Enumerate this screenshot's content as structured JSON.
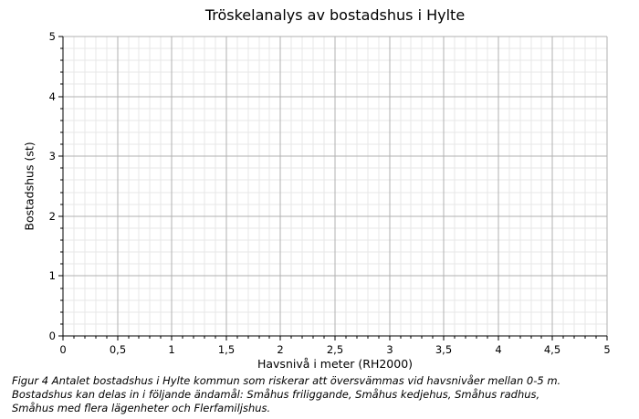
{
  "figure": {
    "caption_lines": [
      "Figur 4 Antalet bostadshus i Hylte kommun som riskerar att översvämmas vid havsnivåer mellan 0-5 m.",
      "Bostadshus kan delas in i följande ändamål: Småhus friliggande, Småhus kedjehus, Småhus radhus,",
      "Småhus med flera lägenheter och Flerfamiljshus."
    ]
  },
  "chart_data": {
    "type": "bar",
    "title": "Tröskelanalys av bostadshus i Hylte",
    "xlabel": "Havsnivå i meter (RH2000)",
    "ylabel": "Bostadshus (st)",
    "xlim": [
      0,
      5
    ],
    "ylim": [
      0,
      5
    ],
    "x_ticks": [
      {
        "value": 0,
        "label": "0"
      },
      {
        "value": 0.5,
        "label": "0,5"
      },
      {
        "value": 1,
        "label": "1"
      },
      {
        "value": 1.5,
        "label": "1,5"
      },
      {
        "value": 2,
        "label": "2"
      },
      {
        "value": 2.5,
        "label": "2,5"
      },
      {
        "value": 3,
        "label": "3"
      },
      {
        "value": 3.5,
        "label": "3,5"
      },
      {
        "value": 4,
        "label": "4"
      },
      {
        "value": 4.5,
        "label": "4,5"
      },
      {
        "value": 5,
        "label": "5"
      }
    ],
    "y_ticks": [
      {
        "value": 0,
        "label": "0"
      },
      {
        "value": 1,
        "label": "1"
      },
      {
        "value": 2,
        "label": "2"
      },
      {
        "value": 3,
        "label": "3"
      },
      {
        "value": 4,
        "label": "4"
      },
      {
        "value": 5,
        "label": "5"
      }
    ],
    "x_minor_step": 0.1,
    "y_minor_step": 0.2,
    "grid": "major-and-minor",
    "legend": "none",
    "series": [],
    "colors": {
      "background": "#ffffff",
      "grid_major": "#b0b0b0",
      "grid_minor": "#e7e7e7",
      "axis": "#000000",
      "text": "#000000"
    }
  }
}
